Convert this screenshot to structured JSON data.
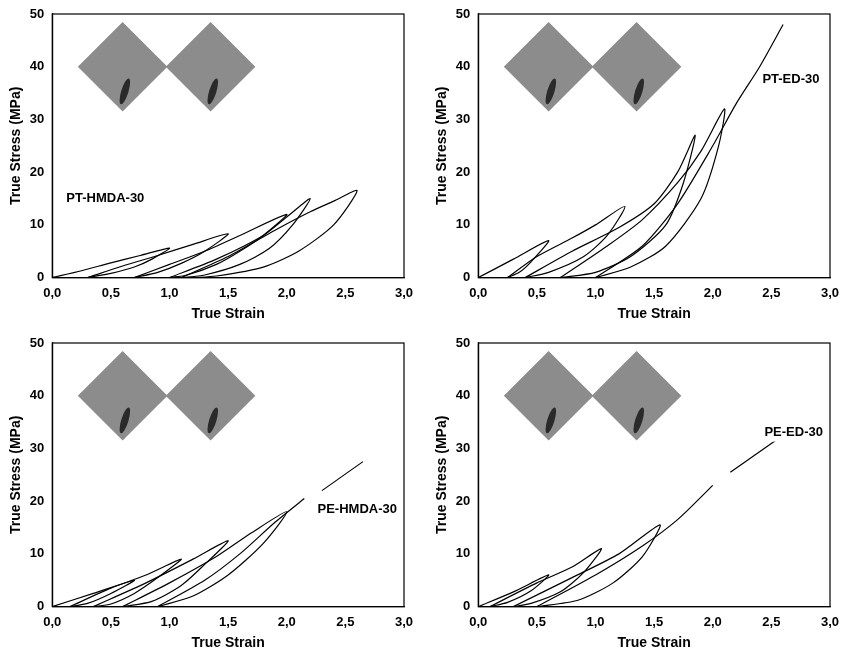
{
  "chart_data": [
    {
      "type": "line",
      "annotation": "PT-HMDA-30",
      "x_label": "True Strain",
      "y_label": "True Stress (MPa)",
      "xlim": [
        0,
        3
      ],
      "xticks": [
        {
          "value": 0,
          "label": "0,0"
        },
        {
          "value": 0.5,
          "label": "0,5"
        },
        {
          "value": 1,
          "label": "1,0"
        },
        {
          "value": 1.5,
          "label": "1,5"
        },
        {
          "value": 2,
          "label": "2,0"
        },
        {
          "value": 2.5,
          "label": "2,5"
        },
        {
          "value": 3,
          "label": "3,0"
        }
      ],
      "ylim": [
        0,
        50
      ],
      "yticks": [
        0,
        10,
        20,
        30,
        40,
        50
      ],
      "grid": false,
      "series": [
        {
          "color": "#000000",
          "x": [
            0,
            0.25,
            0.5,
            0.75,
            1.0,
            0.85,
            0.7,
            0.5,
            0.3
          ],
          "values": [
            0,
            1.3,
            2.8,
            4.2,
            5.6,
            3.5,
            2,
            0.8,
            0
          ]
        },
        {
          "color": "#000000",
          "x": [
            0.3,
            0.6,
            0.9,
            1.2,
            1.5,
            1.3,
            1.1,
            0.9,
            0.7
          ],
          "values": [
            0,
            2.2,
            4.2,
            6.3,
            8.3,
            5,
            2.7,
            1,
            0
          ]
        },
        {
          "color": "#000000",
          "x": [
            0.7,
            1.0,
            1.3,
            1.6,
            2.0,
            1.8,
            1.6,
            1.4,
            1.15,
            1.0
          ],
          "values": [
            0,
            2.5,
            5,
            8,
            12,
            8,
            5,
            2.5,
            0.5,
            0
          ]
        },
        {
          "color": "#000000",
          "x": [
            1.0,
            1.4,
            1.8,
            2.0,
            2.2,
            2.05,
            1.85,
            1.6,
            1.3,
            1.1
          ],
          "values": [
            0,
            3.5,
            8,
            11.5,
            15,
            10,
            5.5,
            2.5,
            0.5,
            0
          ]
        },
        {
          "color": "#000000",
          "x": [
            1.1,
            1.5,
            1.9,
            2.2,
            2.4,
            2.6,
            2.4,
            2.1,
            1.8,
            1.4,
            1.2
          ],
          "values": [
            0,
            4,
            9,
            12.5,
            14.5,
            16.5,
            10,
            5,
            2,
            0.3,
            0
          ]
        }
      ]
    },
    {
      "type": "line",
      "annotation": "PT-ED-30",
      "x_label": "True Strain",
      "y_label": "True Stress (MPa)",
      "xlim": [
        0,
        3
      ],
      "xticks": [
        {
          "value": 0,
          "label": "0,0"
        },
        {
          "value": 0.5,
          "label": "0,5"
        },
        {
          "value": 1,
          "label": "1,0"
        },
        {
          "value": 1.5,
          "label": "1,5"
        },
        {
          "value": 2,
          "label": "2,0"
        },
        {
          "value": 2.5,
          "label": "2,5"
        },
        {
          "value": 3,
          "label": "3,0"
        }
      ],
      "ylim": [
        0,
        50
      ],
      "yticks": [
        0,
        10,
        20,
        30,
        40,
        50
      ],
      "grid": false,
      "series": [
        {
          "color": "#000000",
          "x": [
            0,
            0.3,
            0.6,
            0.45,
            0.35,
            0.25
          ],
          "values": [
            0,
            3.5,
            7,
            3,
            1,
            0
          ]
        },
        {
          "color": "#000000",
          "x": [
            0.25,
            0.5,
            0.8,
            1.0,
            1.25,
            1.1,
            0.9,
            0.6,
            0.4
          ],
          "values": [
            0,
            4,
            7.5,
            10,
            13.5,
            8,
            4,
            1,
            0
          ]
        },
        {
          "color": "#000000",
          "x": [
            0.4,
            0.8,
            1.2,
            1.5,
            1.7,
            1.85,
            1.75,
            1.6,
            1.3,
            1.0,
            0.7
          ],
          "values": [
            0,
            5,
            9.5,
            14,
            20,
            27,
            18,
            10,
            4,
            1,
            0
          ]
        },
        {
          "color": "#000000",
          "x": [
            0.7,
            1.1,
            1.4,
            1.7,
            1.9,
            2.1,
            2.05,
            1.9,
            1.6,
            1.3,
            1.0
          ],
          "values": [
            0,
            6,
            11,
            18,
            24,
            32,
            25,
            15,
            6,
            2,
            0
          ]
        },
        {
          "color": "#000000",
          "x": [
            1.0,
            1.4,
            1.7,
            2.0,
            2.2,
            2.4,
            2.6
          ],
          "values": [
            0,
            6,
            14,
            25,
            33,
            40,
            48
          ]
        }
      ]
    },
    {
      "type": "line",
      "annotation": "PE-HMDA-30",
      "x_label": "True Strain",
      "y_label": "True Stress (MPa)",
      "xlim": [
        0,
        3
      ],
      "xticks": [
        {
          "value": 0,
          "label": "0,0"
        },
        {
          "value": 0.5,
          "label": "0,5"
        },
        {
          "value": 1,
          "label": "1,0"
        },
        {
          "value": 1.5,
          "label": "1,5"
        },
        {
          "value": 2,
          "label": "2,0"
        },
        {
          "value": 2.5,
          "label": "2,5"
        },
        {
          "value": 3,
          "label": "3,0"
        }
      ],
      "ylim": [
        0,
        50
      ],
      "yticks": [
        0,
        10,
        20,
        30,
        40,
        50
      ],
      "grid": false,
      "series": [
        {
          "color": "#000000",
          "x": [
            0,
            0.35,
            0.7,
            0.5,
            0.3,
            0.15
          ],
          "values": [
            0,
            2.5,
            5,
            2.5,
            0.6,
            0
          ]
        },
        {
          "color": "#000000",
          "x": [
            0.15,
            0.5,
            0.8,
            1.1,
            0.9,
            0.7,
            0.5,
            0.35
          ],
          "values": [
            0,
            3.5,
            6,
            9,
            5.5,
            2.5,
            0.5,
            0
          ]
        },
        {
          "color": "#000000",
          "x": [
            0.35,
            0.8,
            1.2,
            1.5,
            1.3,
            1.1,
            0.85,
            0.6
          ],
          "values": [
            0,
            4.5,
            9,
            12.5,
            8,
            4,
            1,
            0
          ]
        },
        {
          "color": "#000000",
          "x": [
            0.6,
            1.0,
            1.4,
            1.7,
            2.0,
            1.8,
            1.5,
            1.2,
            0.9
          ],
          "values": [
            0,
            4.5,
            9.5,
            14,
            18,
            12,
            6,
            2,
            0
          ]
        },
        {
          "color": "#000000",
          "x": [
            0.9,
            1.3,
            1.6,
            1.9,
            2.15,
            2.2,
            2.3,
            2.65
          ],
          "values": [
            0,
            5,
            10,
            16,
            20.5,
            null,
            22,
            27.5
          ]
        }
      ]
    },
    {
      "type": "line",
      "annotation": "PE-ED-30",
      "x_label": "True Strain",
      "y_label": "True Stress (MPa)",
      "xlim": [
        0,
        3
      ],
      "xticks": [
        {
          "value": 0,
          "label": "0,0"
        },
        {
          "value": 0.5,
          "label": "0,5"
        },
        {
          "value": 1,
          "label": "1,0"
        },
        {
          "value": 1.5,
          "label": "1,5"
        },
        {
          "value": 2,
          "label": "2,0"
        },
        {
          "value": 2.5,
          "label": "2,5"
        },
        {
          "value": 3,
          "label": "3,0"
        }
      ],
      "ylim": [
        0,
        50
      ],
      "yticks": [
        0,
        10,
        20,
        30,
        40,
        50
      ],
      "grid": false,
      "series": [
        {
          "color": "#000000",
          "x": [
            0,
            0.3,
            0.6,
            0.45,
            0.25,
            0.1
          ],
          "values": [
            0,
            2.8,
            6,
            3,
            0.8,
            0
          ]
        },
        {
          "color": "#000000",
          "x": [
            0.1,
            0.5,
            0.8,
            1.05,
            0.9,
            0.7,
            0.45,
            0.3
          ],
          "values": [
            0,
            4.5,
            7.5,
            11,
            6.5,
            2.8,
            0.6,
            0
          ]
        },
        {
          "color": "#000000",
          "x": [
            0.3,
            0.8,
            1.2,
            1.55,
            1.4,
            1.15,
            0.85,
            0.5
          ],
          "values": [
            0,
            5.5,
            10,
            15.5,
            9.5,
            4.5,
            1.2,
            0
          ]
        },
        {
          "color": "#000000",
          "x": [
            0.5,
            1.0,
            1.4,
            1.7,
            2.0,
            2.08,
            2.15,
            2.6
          ],
          "values": [
            0,
            6,
            11.5,
            16.5,
            23,
            null,
            25.5,
            32.5
          ]
        }
      ]
    }
  ]
}
